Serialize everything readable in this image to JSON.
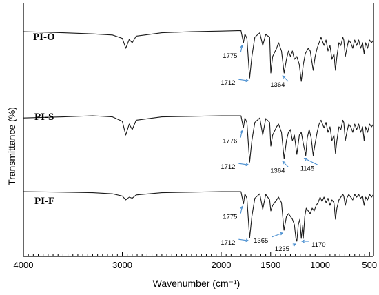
{
  "chart_data": {
    "type": "line",
    "xlabel": "Wavenumber (cm⁻¹)",
    "ylabel": "Transmittance (%)",
    "xlim": [
      4000,
      460
    ],
    "x_reversed": true,
    "x_ticks": [
      4000,
      3000,
      2000,
      1500,
      1000,
      500
    ],
    "grid": false,
    "legend": "none",
    "series_color": "#1a1a1a",
    "arrow_color": "#4a8fd0",
    "series": [
      {
        "name": "PI-O",
        "points": [
          [
            4000,
            0.1
          ],
          [
            3600,
            0.12
          ],
          [
            3300,
            0.14
          ],
          [
            3100,
            0.16
          ],
          [
            3000,
            0.22
          ],
          [
            2965,
            0.4
          ],
          [
            2930,
            0.24
          ],
          [
            2900,
            0.3
          ],
          [
            2860,
            0.18
          ],
          [
            2600,
            0.12
          ],
          [
            2300,
            0.1
          ],
          [
            2000,
            0.09
          ],
          [
            1800,
            0.08
          ],
          [
            1775,
            0.3
          ],
          [
            1760,
            0.14
          ],
          [
            1740,
            0.22
          ],
          [
            1712,
            0.94
          ],
          [
            1690,
            0.55
          ],
          [
            1660,
            0.2
          ],
          [
            1610,
            0.12
          ],
          [
            1580,
            0.35
          ],
          [
            1550,
            0.15
          ],
          [
            1510,
            0.2
          ],
          [
            1498,
            0.85
          ],
          [
            1480,
            0.55
          ],
          [
            1440,
            0.4
          ],
          [
            1420,
            0.3
          ],
          [
            1390,
            0.45
          ],
          [
            1364,
            0.85
          ],
          [
            1340,
            0.6
          ],
          [
            1320,
            0.45
          ],
          [
            1300,
            0.55
          ],
          [
            1280,
            0.45
          ],
          [
            1260,
            0.6
          ],
          [
            1235,
            0.55
          ],
          [
            1210,
            0.7
          ],
          [
            1190,
            1.0
          ],
          [
            1170,
            0.7
          ],
          [
            1150,
            0.5
          ],
          [
            1120,
            0.4
          ],
          [
            1100,
            0.45
          ],
          [
            1070,
            0.8
          ],
          [
            1050,
            0.55
          ],
          [
            1030,
            0.4
          ],
          [
            1010,
            0.3
          ],
          [
            990,
            0.2
          ],
          [
            960,
            0.35
          ],
          [
            940,
            0.25
          ],
          [
            920,
            0.45
          ],
          [
            900,
            0.35
          ],
          [
            880,
            0.6
          ],
          [
            860,
            0.5
          ],
          [
            845,
            0.8
          ],
          [
            830,
            0.55
          ],
          [
            810,
            0.3
          ],
          [
            790,
            0.35
          ],
          [
            770,
            0.2
          ],
          [
            760,
            0.25
          ],
          [
            745,
            0.55
          ],
          [
            730,
            0.4
          ],
          [
            710,
            0.25
          ],
          [
            690,
            0.3
          ],
          [
            670,
            0.4
          ],
          [
            650,
            0.25
          ],
          [
            630,
            0.35
          ],
          [
            610,
            0.25
          ],
          [
            590,
            0.4
          ],
          [
            570,
            0.3
          ],
          [
            555,
            0.5
          ],
          [
            540,
            0.3
          ],
          [
            520,
            0.4
          ],
          [
            500,
            0.25
          ],
          [
            480,
            0.3
          ],
          [
            460,
            0.25
          ]
        ],
        "annotations": [
          {
            "label": "1775",
            "wavenumber": 1775
          },
          {
            "label": "1712",
            "wavenumber": 1712
          },
          {
            "label": "1364",
            "wavenumber": 1364
          }
        ]
      },
      {
        "name": "PI-S",
        "points": [
          [
            4000,
            0.14
          ],
          [
            3600,
            0.12
          ],
          [
            3300,
            0.1
          ],
          [
            3100,
            0.12
          ],
          [
            3000,
            0.2
          ],
          [
            2965,
            0.45
          ],
          [
            2930,
            0.25
          ],
          [
            2900,
            0.35
          ],
          [
            2860,
            0.18
          ],
          [
            2600,
            0.12
          ],
          [
            2300,
            0.11
          ],
          [
            2000,
            0.1
          ],
          [
            1800,
            0.1
          ],
          [
            1776,
            0.32
          ],
          [
            1760,
            0.14
          ],
          [
            1740,
            0.22
          ],
          [
            1712,
            0.94
          ],
          [
            1690,
            0.55
          ],
          [
            1660,
            0.22
          ],
          [
            1610,
            0.14
          ],
          [
            1580,
            0.45
          ],
          [
            1550,
            0.15
          ],
          [
            1510,
            0.22
          ],
          [
            1498,
            0.65
          ],
          [
            1480,
            0.45
          ],
          [
            1440,
            0.3
          ],
          [
            1420,
            0.25
          ],
          [
            1390,
            0.4
          ],
          [
            1364,
            0.88
          ],
          [
            1340,
            0.55
          ],
          [
            1320,
            0.4
          ],
          [
            1300,
            0.35
          ],
          [
            1280,
            0.55
          ],
          [
            1260,
            0.45
          ],
          [
            1235,
            0.8
          ],
          [
            1210,
            0.45
          ],
          [
            1190,
            0.4
          ],
          [
            1170,
            0.6
          ],
          [
            1145,
            0.82
          ],
          [
            1130,
            0.5
          ],
          [
            1110,
            0.35
          ],
          [
            1090,
            0.5
          ],
          [
            1070,
            0.82
          ],
          [
            1050,
            0.6
          ],
          [
            1030,
            0.4
          ],
          [
            1010,
            0.25
          ],
          [
            990,
            0.18
          ],
          [
            960,
            0.32
          ],
          [
            940,
            0.22
          ],
          [
            920,
            0.4
          ],
          [
            900,
            0.3
          ],
          [
            880,
            0.55
          ],
          [
            860,
            0.45
          ],
          [
            845,
            0.78
          ],
          [
            830,
            0.55
          ],
          [
            810,
            0.3
          ],
          [
            790,
            0.35
          ],
          [
            770,
            0.18
          ],
          [
            760,
            0.22
          ],
          [
            745,
            0.55
          ],
          [
            730,
            0.4
          ],
          [
            710,
            0.25
          ],
          [
            690,
            0.3
          ],
          [
            670,
            0.4
          ],
          [
            650,
            0.25
          ],
          [
            630,
            0.35
          ],
          [
            610,
            0.25
          ],
          [
            590,
            0.4
          ],
          [
            570,
            0.3
          ],
          [
            555,
            0.55
          ],
          [
            540,
            0.3
          ],
          [
            520,
            0.4
          ],
          [
            500,
            0.25
          ],
          [
            480,
            0.3
          ],
          [
            460,
            0.25
          ]
        ],
        "annotations": [
          {
            "label": "1776",
            "wavenumber": 1776
          },
          {
            "label": "1712",
            "wavenumber": 1712
          },
          {
            "label": "1364",
            "wavenumber": 1364
          },
          {
            "label": "1145",
            "wavenumber": 1145
          }
        ]
      },
      {
        "name": "PI-F",
        "points": [
          [
            4000,
            0.1
          ],
          [
            3600,
            0.11
          ],
          [
            3300,
            0.12
          ],
          [
            3100,
            0.14
          ],
          [
            3000,
            0.18
          ],
          [
            2965,
            0.25
          ],
          [
            2930,
            0.2
          ],
          [
            2900,
            0.22
          ],
          [
            2860,
            0.16
          ],
          [
            2600,
            0.12
          ],
          [
            2300,
            0.11
          ],
          [
            2000,
            0.1
          ],
          [
            1800,
            0.1
          ],
          [
            1775,
            0.32
          ],
          [
            1760,
            0.14
          ],
          [
            1740,
            0.22
          ],
          [
            1712,
            0.94
          ],
          [
            1690,
            0.55
          ],
          [
            1660,
            0.22
          ],
          [
            1610,
            0.14
          ],
          [
            1580,
            0.42
          ],
          [
            1550,
            0.15
          ],
          [
            1510,
            0.25
          ],
          [
            1498,
            0.45
          ],
          [
            1480,
            0.35
          ],
          [
            1440,
            0.25
          ],
          [
            1420,
            0.2
          ],
          [
            1390,
            0.3
          ],
          [
            1365,
            0.8
          ],
          [
            1340,
            0.55
          ],
          [
            1320,
            0.5
          ],
          [
            1300,
            0.55
          ],
          [
            1280,
            0.6
          ],
          [
            1260,
            0.7
          ],
          [
            1245,
            0.95
          ],
          [
            1235,
            1.0
          ],
          [
            1220,
            0.7
          ],
          [
            1205,
            0.6
          ],
          [
            1190,
            0.95
          ],
          [
            1175,
            0.7
          ],
          [
            1170,
            0.95
          ],
          [
            1155,
            0.55
          ],
          [
            1140,
            0.4
          ],
          [
            1120,
            0.45
          ],
          [
            1100,
            0.5
          ],
          [
            1080,
            0.4
          ],
          [
            1060,
            0.45
          ],
          [
            1040,
            0.35
          ],
          [
            1020,
            0.3
          ],
          [
            1000,
            0.2
          ],
          [
            980,
            0.28
          ],
          [
            960,
            0.2
          ],
          [
            940,
            0.3
          ],
          [
            920,
            0.22
          ],
          [
            900,
            0.35
          ],
          [
            880,
            0.25
          ],
          [
            860,
            0.3
          ],
          [
            845,
            0.6
          ],
          [
            830,
            0.4
          ],
          [
            810,
            0.25
          ],
          [
            790,
            0.2
          ],
          [
            770,
            0.15
          ],
          [
            760,
            0.18
          ],
          [
            745,
            0.35
          ],
          [
            730,
            0.22
          ],
          [
            710,
            0.15
          ],
          [
            690,
            0.2
          ],
          [
            670,
            0.25
          ],
          [
            650,
            0.15
          ],
          [
            630,
            0.2
          ],
          [
            610,
            0.15
          ],
          [
            590,
            0.22
          ],
          [
            570,
            0.18
          ],
          [
            555,
            0.35
          ],
          [
            540,
            0.2
          ],
          [
            520,
            0.25
          ],
          [
            500,
            0.15
          ],
          [
            480,
            0.2
          ],
          [
            460,
            0.15
          ]
        ],
        "annotations": [
          {
            "label": "1775",
            "wavenumber": 1775
          },
          {
            "label": "1712",
            "wavenumber": 1712
          },
          {
            "label": "1365",
            "wavenumber": 1365
          },
          {
            "label": "1235",
            "wavenumber": 1235
          },
          {
            "label": "1170",
            "wavenumber": 1170
          }
        ]
      }
    ]
  }
}
